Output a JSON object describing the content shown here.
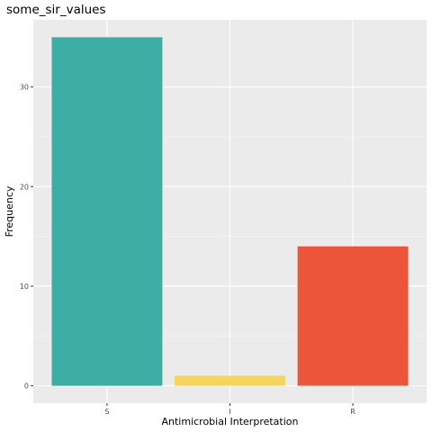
{
  "chart_data": {
    "type": "bar",
    "title": "some_sir_values",
    "xlabel": "Antimicrobial Interpretation",
    "ylabel": "Frequency",
    "categories": [
      "S",
      "I",
      "R"
    ],
    "values": [
      35,
      1,
      14
    ],
    "colors": [
      "#3CAEA3",
      "#F6D55C",
      "#ED553B"
    ],
    "ylim": [
      -1.75,
      36.75
    ],
    "yticks": [
      0,
      10,
      20,
      30
    ],
    "grid": true,
    "panel_background": "#EBEBEB",
    "legend": "none"
  }
}
